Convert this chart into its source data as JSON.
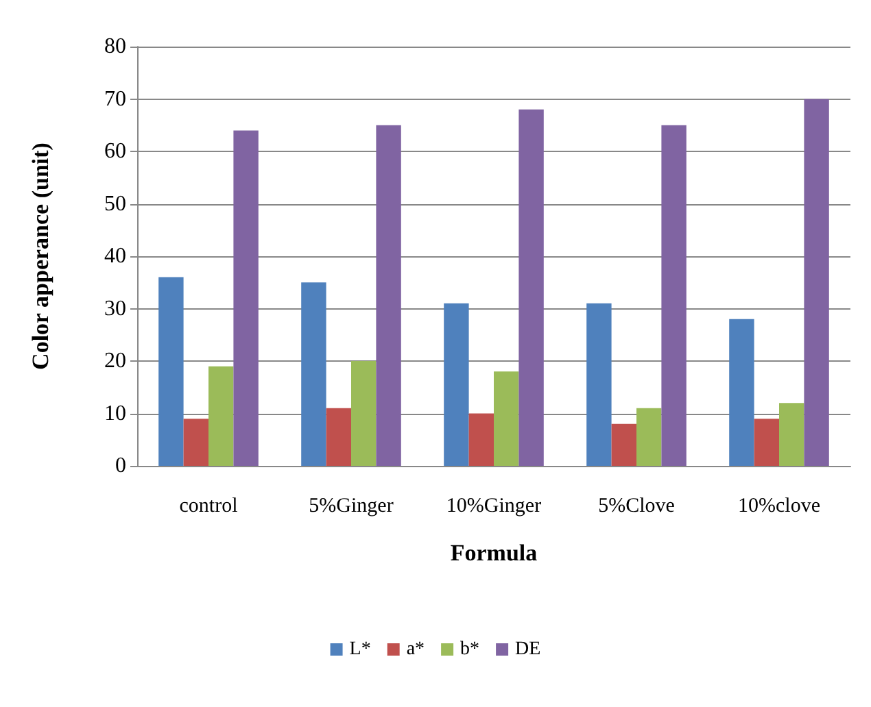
{
  "chart_data": {
    "type": "bar",
    "xlabel": "Formula",
    "ylabel": "Color apperance (unit)",
    "categories": [
      "control",
      "5%Ginger",
      "10%Ginger",
      "5%Clove",
      "10%clove"
    ],
    "series": [
      {
        "name": "L*",
        "color": "#4f81bd",
        "values": [
          36,
          35,
          31,
          31,
          28
        ]
      },
      {
        "name": "a*",
        "color": "#c0504d",
        "values": [
          9,
          11,
          10,
          8,
          9
        ]
      },
      {
        "name": "b*",
        "color": "#9bbb59",
        "values": [
          19,
          20,
          18,
          11,
          12
        ]
      },
      {
        "name": "DE",
        "color": "#8064a2",
        "values": [
          64,
          65,
          68,
          65,
          70
        ]
      }
    ],
    "ylim": [
      0,
      80
    ],
    "yticks": [
      0,
      10,
      20,
      30,
      40,
      50,
      60,
      70,
      80
    ],
    "grid": "y",
    "legend": "bottom"
  }
}
